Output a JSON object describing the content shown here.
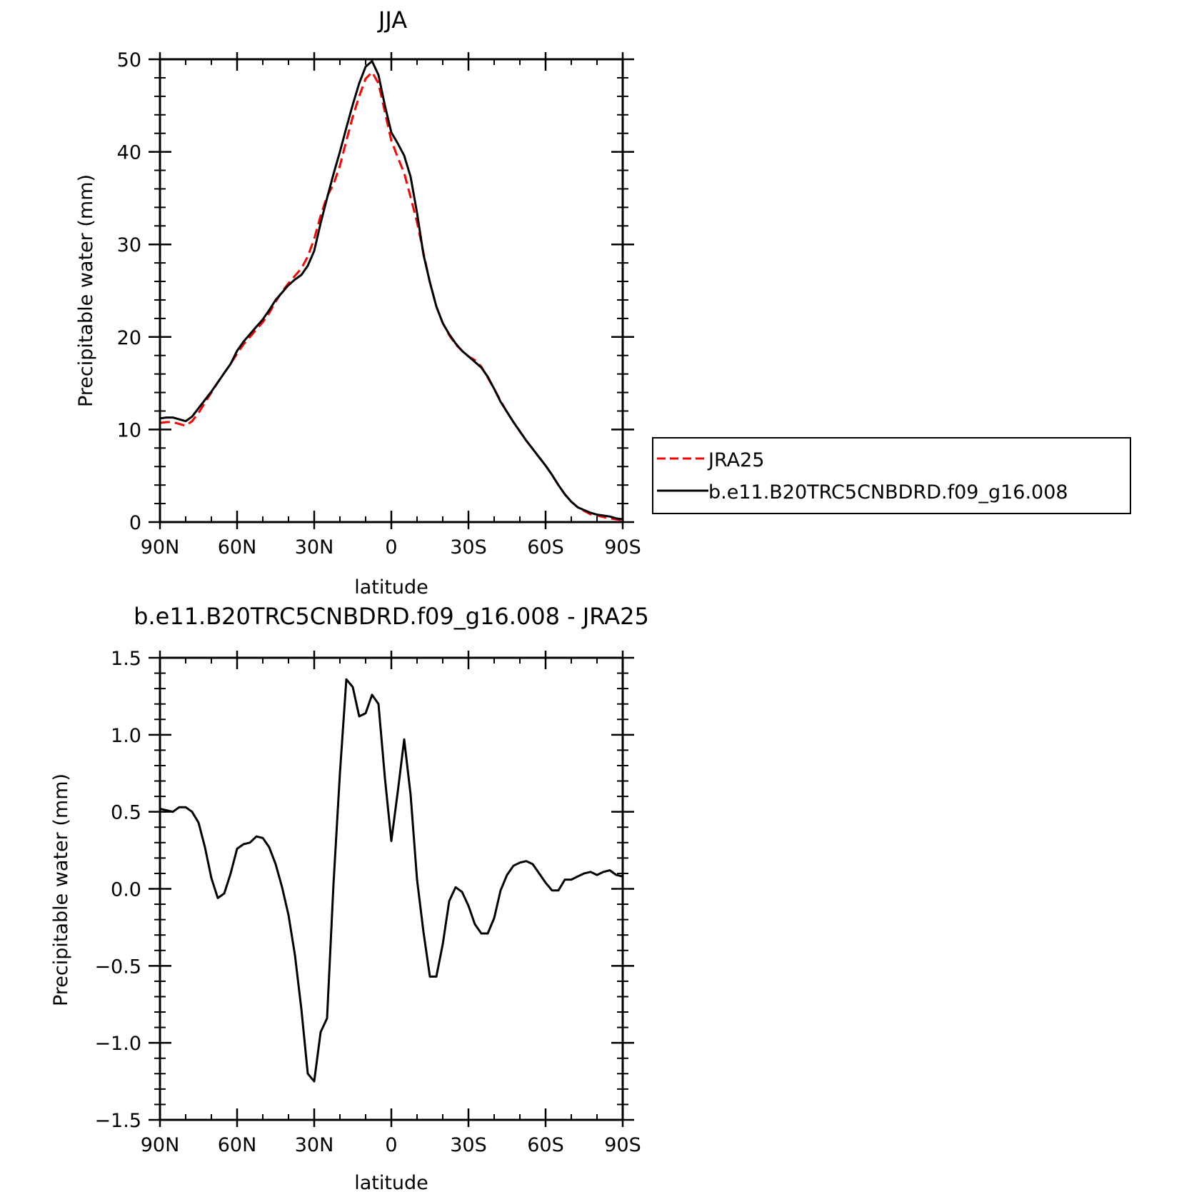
{
  "chart_data": [
    {
      "type": "line",
      "title": "JJA",
      "xlabel": "latitude",
      "ylabel": "Precipitable water (mm)",
      "xlim": [
        90,
        -90
      ],
      "ylim": [
        0,
        50
      ],
      "x_ticks": [
        90,
        60,
        30,
        0,
        -30,
        -60,
        -90
      ],
      "x_tick_labels": [
        "90N",
        "60N",
        "30N",
        "0",
        "30S",
        "60S",
        "90S"
      ],
      "y_ticks": [
        0,
        10,
        20,
        30,
        40,
        50
      ],
      "y_tick_labels": [
        "0",
        "10",
        "20",
        "30",
        "40",
        "50"
      ],
      "legend_position": "right",
      "x": [
        90,
        87.5,
        85,
        82.5,
        80,
        77.5,
        75,
        72.5,
        70,
        67.5,
        65,
        62.5,
        60,
        57.5,
        55,
        52.5,
        50,
        47.5,
        45,
        42.5,
        40,
        37.5,
        35,
        32.5,
        30,
        27.5,
        25,
        22.5,
        20,
        17.5,
        15,
        12.5,
        10,
        7.5,
        5,
        2.5,
        0,
        -2.5,
        -5,
        -7.5,
        -10,
        -12.5,
        -15,
        -17.5,
        -20,
        -22.5,
        -25,
        -27.5,
        -30,
        -32.5,
        -35,
        -37.5,
        -40,
        -42.5,
        -45,
        -47.5,
        -50,
        -52.5,
        -55,
        -57.5,
        -60,
        -62.5,
        -65,
        -67.5,
        -70,
        -72.5,
        -75,
        -77.5,
        -80,
        -82.5,
        -85,
        -87.5,
        -90
      ],
      "series": [
        {
          "name": "JRA25",
          "color": "#ff0000",
          "dash": "dashed",
          "values": [
            10.7,
            10.8,
            10.8,
            10.6,
            10.4,
            10.9,
            11.8,
            12.9,
            14.0,
            15.1,
            16.1,
            17.1,
            18.2,
            19.2,
            20.0,
            20.8,
            21.6,
            22.6,
            23.8,
            24.9,
            25.8,
            26.6,
            27.4,
            28.7,
            30.6,
            33.1,
            35.2,
            36.5,
            38.5,
            41.2,
            43.8,
            46.0,
            47.9,
            48.6,
            47.4,
            44.3,
            41.2,
            39.4,
            37.7,
            35.1,
            32.4,
            29.1,
            25.9,
            23.3,
            21.5,
            20.2,
            19.2,
            18.5,
            17.9,
            17.5,
            16.8,
            15.6,
            14.4,
            13.1,
            11.9,
            10.8,
            9.8,
            8.8,
            7.9,
            7.0,
            6.1,
            5.1,
            4.0,
            3.0,
            2.2,
            1.6,
            1.2,
            0.85,
            0.7,
            0.55,
            0.4,
            0.3,
            0.2
          ]
        },
        {
          "name": "b.e11.B20TRC5CNBDRD.f09_g16.008",
          "color": "#000000",
          "dash": "solid",
          "values": [
            11.2,
            11.3,
            11.3,
            11.1,
            10.9,
            11.4,
            12.3,
            13.2,
            14.1,
            15.1,
            16.1,
            17.1,
            18.5,
            19.5,
            20.3,
            21.1,
            21.9,
            22.9,
            24.0,
            24.8,
            25.6,
            26.2,
            26.7,
            27.7,
            29.3,
            32.3,
            35.0,
            37.6,
            40.0,
            42.6,
            45.1,
            47.4,
            49.2,
            49.8,
            48.3,
            45.0,
            42.1,
            40.9,
            39.6,
            37.3,
            33.4,
            28.9,
            25.9,
            23.3,
            21.5,
            20.3,
            19.3,
            18.5,
            17.9,
            17.3,
            16.7,
            15.7,
            14.4,
            13.0,
            11.9,
            10.8,
            9.8,
            8.8,
            7.9,
            7.0,
            6.1,
            5.1,
            4.0,
            3.0,
            2.2,
            1.6,
            1.3,
            1.0,
            0.8,
            0.7,
            0.6,
            0.4,
            0.3
          ]
        }
      ]
    },
    {
      "type": "line",
      "title": "b.e11.B20TRC5CNBDRD.f09_g16.008 - JRA25",
      "xlabel": "latitude",
      "ylabel": "Precipitable water (mm)",
      "xlim": [
        90,
        -90
      ],
      "ylim": [
        -1.5,
        1.5
      ],
      "x_ticks": [
        90,
        60,
        30,
        0,
        -30,
        -60,
        -90
      ],
      "x_tick_labels": [
        "90N",
        "60N",
        "30N",
        "0",
        "30S",
        "60S",
        "90S"
      ],
      "y_ticks": [
        1.5,
        1.0,
        0.5,
        0.0,
        -0.5,
        -1.0,
        -1.5
      ],
      "y_tick_labels": [
        "1.5",
        "1.0",
        "0.5",
        "0.0",
        "−0.5",
        "−1.0",
        "−1.5"
      ],
      "x": [
        90,
        87.5,
        85,
        82.5,
        80,
        77.5,
        75,
        72.5,
        70,
        67.5,
        65,
        62.5,
        60,
        57.5,
        55,
        52.5,
        50,
        47.5,
        45,
        42.5,
        40,
        37.5,
        35,
        32.5,
        30,
        27.5,
        25,
        22.5,
        20,
        17.5,
        15,
        12.5,
        10,
        7.5,
        5,
        2.5,
        0,
        -2.5,
        -5,
        -7.5,
        -10,
        -12.5,
        -15,
        -17.5,
        -20,
        -22.5,
        -25,
        -27.5,
        -30,
        -32.5,
        -35,
        -37.5,
        -40,
        -42.5,
        -45,
        -47.5,
        -50,
        -52.5,
        -55,
        -57.5,
        -60,
        -62.5,
        -65,
        -67.5,
        -70,
        -72.5,
        -75,
        -77.5,
        -80,
        -82.5,
        -85,
        -87.5,
        -90
      ],
      "series": [
        {
          "color": "#000000",
          "dash": "solid",
          "values": [
            0.52,
            0.51,
            0.5,
            0.53,
            0.53,
            0.5,
            0.43,
            0.27,
            0.07,
            -0.06,
            -0.03,
            0.1,
            0.26,
            0.29,
            0.3,
            0.34,
            0.33,
            0.27,
            0.16,
            0.01,
            -0.17,
            -0.43,
            -0.78,
            -1.2,
            -1.25,
            -0.93,
            -0.84,
            0.03,
            0.75,
            1.36,
            1.31,
            1.12,
            1.14,
            1.26,
            1.2,
            0.72,
            0.31,
            0.63,
            0.97,
            0.61,
            0.06,
            -0.28,
            -0.57,
            -0.57,
            -0.36,
            -0.08,
            0.01,
            -0.02,
            -0.11,
            -0.23,
            -0.29,
            -0.29,
            -0.19,
            -0.01,
            0.09,
            0.15,
            0.17,
            0.18,
            0.16,
            0.1,
            0.04,
            -0.01,
            -0.01,
            0.06,
            0.06,
            0.08,
            0.1,
            0.11,
            0.09,
            0.11,
            0.12,
            0.09,
            0.08
          ]
        }
      ]
    }
  ]
}
